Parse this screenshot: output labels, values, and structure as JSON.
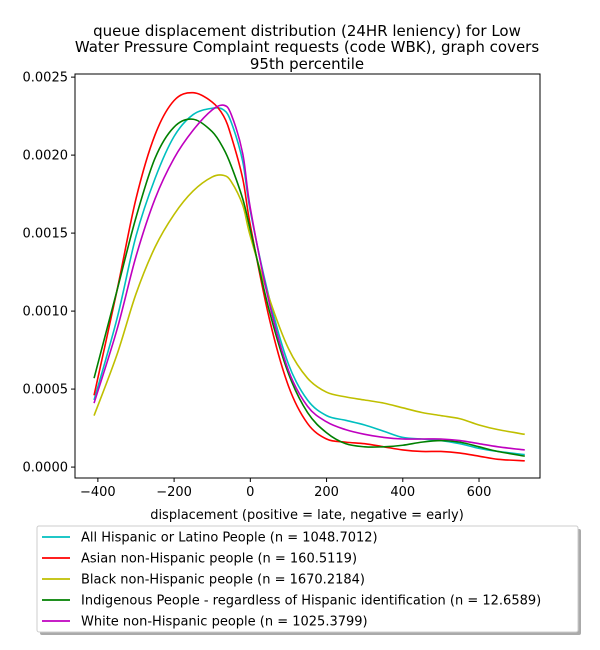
{
  "chart_data": {
    "type": "line",
    "title_lines": [
      "queue displacement distribution (24HR leniency) for Low",
      "Water Pressure Complaint  requests (code WBK), graph covers",
      "95th percentile"
    ],
    "xlabel": "displacement (positive = late, negative = early)",
    "ylabel": "",
    "xlim": [
      -460,
      760
    ],
    "ylim": [
      -7e-05,
      0.00252
    ],
    "xticks": [
      -400,
      -200,
      0,
      200,
      400,
      600
    ],
    "xtick_labels": [
      "−400",
      "−200",
      "0",
      "200",
      "400",
      "600"
    ],
    "yticks": [
      0.0,
      0.0005,
      0.001,
      0.0015,
      0.002,
      0.0025
    ],
    "ytick_labels": [
      "0.0000",
      "0.0005",
      "0.0010",
      "0.0015",
      "0.0020",
      "0.0025"
    ],
    "grid": false,
    "legend_placement": "below plot",
    "series": [
      {
        "name": "All Hispanic or Latino People (n = 1048.7012)",
        "color": "#00bfbf",
        "x": [
          -410,
          -350,
          -300,
          -250,
          -200,
          -150,
          -100,
          -70,
          -50,
          -20,
          0,
          50,
          100,
          150,
          200,
          250,
          300,
          350,
          400,
          450,
          500,
          550,
          600,
          650,
          720
        ],
        "y": [
          0.00043,
          0.00095,
          0.00148,
          0.00185,
          0.00212,
          0.00226,
          0.0023,
          0.00229,
          0.00221,
          0.00196,
          0.00164,
          0.00108,
          0.00066,
          0.00043,
          0.00033,
          0.0003,
          0.00027,
          0.00023,
          0.00019,
          0.00018,
          0.00017,
          0.00015,
          0.00012,
          0.0001,
          8e-05
        ]
      },
      {
        "name": "Asian non-Hispanic people (n = 160.5119)",
        "color": "#ff0000",
        "x": [
          -410,
          -350,
          -300,
          -250,
          -200,
          -150,
          -100,
          -70,
          -50,
          -20,
          0,
          50,
          100,
          150,
          200,
          250,
          300,
          350,
          400,
          450,
          500,
          550,
          600,
          650,
          720
        ],
        "y": [
          0.00046,
          0.00113,
          0.00172,
          0.00213,
          0.00235,
          0.0024,
          0.00234,
          0.00225,
          0.00212,
          0.00185,
          0.00155,
          0.00095,
          0.00052,
          0.00028,
          0.00018,
          0.00016,
          0.00015,
          0.00013,
          0.00011,
          0.0001,
          0.0001,
          9e-05,
          7e-05,
          5e-05,
          4e-05
        ]
      },
      {
        "name": "Black non-Hispanic people (n = 1670.2184)",
        "color": "#bfbf00",
        "x": [
          -410,
          -350,
          -300,
          -250,
          -200,
          -150,
          -100,
          -70,
          -50,
          -20,
          0,
          50,
          100,
          150,
          200,
          250,
          300,
          350,
          400,
          450,
          500,
          550,
          600,
          650,
          720
        ],
        "y": [
          0.00033,
          0.00072,
          0.00111,
          0.00141,
          0.00162,
          0.00177,
          0.00186,
          0.00187,
          0.00183,
          0.00168,
          0.00148,
          0.00108,
          0.00076,
          0.00057,
          0.00048,
          0.00045,
          0.00043,
          0.00041,
          0.00038,
          0.00035,
          0.00033,
          0.00031,
          0.00027,
          0.00024,
          0.00021
        ]
      },
      {
        "name": "Indigenous People - regardless of Hispanic identification (n = 12.6589)",
        "color": "#008000",
        "x": [
          -410,
          -350,
          -300,
          -250,
          -200,
          -150,
          -100,
          -70,
          -50,
          -20,
          0,
          50,
          100,
          150,
          200,
          250,
          300,
          350,
          400,
          450,
          500,
          550,
          600,
          650,
          720
        ],
        "y": [
          0.00057,
          0.00113,
          0.0016,
          0.00198,
          0.00218,
          0.00223,
          0.00215,
          0.00204,
          0.00193,
          0.00172,
          0.00152,
          0.001,
          0.0006,
          0.00035,
          0.00022,
          0.00015,
          0.00013,
          0.00013,
          0.00014,
          0.00016,
          0.00017,
          0.00016,
          0.00013,
          0.0001,
          7e-05
        ]
      },
      {
        "name": "White non-Hispanic people (n = 1025.3799)",
        "color": "#bf00bf",
        "x": [
          -410,
          -350,
          -300,
          -250,
          -200,
          -150,
          -100,
          -70,
          -50,
          -20,
          0,
          50,
          100,
          150,
          200,
          250,
          300,
          350,
          400,
          450,
          500,
          550,
          600,
          650,
          720
        ],
        "y": [
          0.00041,
          0.00088,
          0.00135,
          0.00172,
          0.00198,
          0.00216,
          0.00229,
          0.00232,
          0.00226,
          0.00201,
          0.00166,
          0.00105,
          0.00062,
          0.00039,
          0.00029,
          0.00024,
          0.00021,
          0.00019,
          0.00018,
          0.00018,
          0.00018,
          0.00017,
          0.00015,
          0.00013,
          0.00011
        ]
      }
    ]
  }
}
